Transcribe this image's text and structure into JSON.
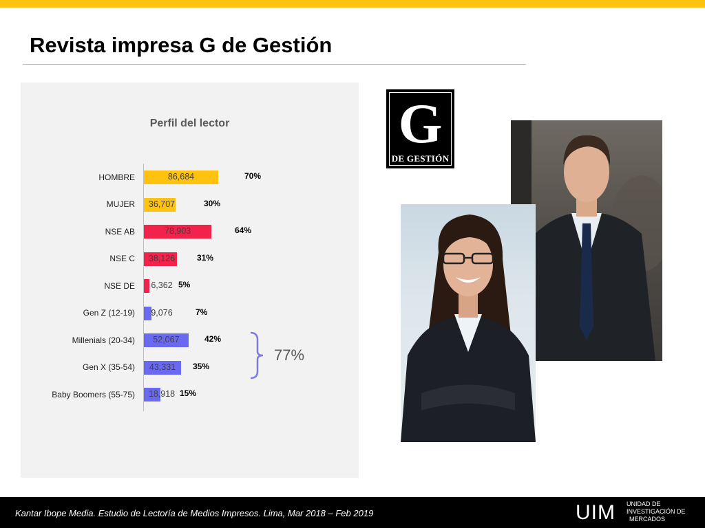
{
  "header": {
    "title": "Revista impresa G de Gestión"
  },
  "colors": {
    "accent": "#FFC20E",
    "gender": "#FFC20E",
    "nse": "#F2234A",
    "generation": "#6A6AF0"
  },
  "chart_data": {
    "type": "bar",
    "orientation": "horizontal",
    "title": "Perfil del lector",
    "grid": false,
    "categories": [
      "HOMBRE",
      "MUJER",
      "NSE AB",
      "NSE C",
      "NSE DE",
      "Gen Z (12-19)",
      "Millenials (20-34)",
      "Gen X (35-54)",
      "Baby Boomers (55-75)"
    ],
    "values": [
      86684,
      36707,
      78903,
      38126,
      6362,
      9076,
      52067,
      43331,
      18918
    ],
    "value_labels": [
      "86,684",
      "36,707",
      "78,903",
      "38,126",
      "6,362",
      "9,076",
      "52,067",
      "43,331",
      "18,918"
    ],
    "percentages": [
      "70%",
      "30%",
      "64%",
      "31%",
      "5%",
      "7%",
      "42%",
      "35%",
      "15%"
    ],
    "groups": [
      "gender",
      "gender",
      "nse",
      "nse",
      "nse",
      "generation",
      "generation",
      "generation",
      "generation"
    ],
    "annotation": {
      "text": "77%",
      "covers": [
        "Millenials (20-34)",
        "Gen X (35-54)"
      ]
    }
  },
  "logo": {
    "letter": "G",
    "word": "DE GESTIÓN"
  },
  "footer": {
    "source": "Kantar Ibope Media. Estudio de Lectoría de Medios Impresos. Lima,  Mar 2018 – Feb 2019",
    "logo": "UIM",
    "unit_lines": [
      "UNIDAD DE",
      "INVESTIGACIÓN DE",
      "MERCADOS"
    ]
  }
}
